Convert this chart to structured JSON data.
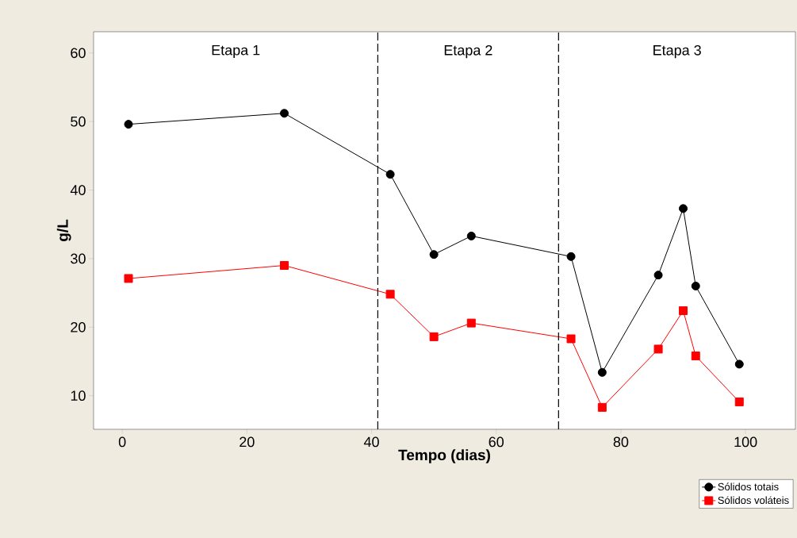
{
  "chart_data": {
    "type": "line",
    "xlabel": "Tempo (dias)",
    "ylabel": "g/L",
    "xlim": [
      -4.6,
      108
    ],
    "ylim": [
      5.1,
      63.1
    ],
    "xticks": [
      0,
      20,
      40,
      60,
      80,
      100
    ],
    "yticks": [
      10,
      20,
      30,
      40,
      50,
      60
    ],
    "grid": false,
    "legend": "bottom right",
    "line_style": "solid",
    "series": [
      {
        "name": "Sólidos totais",
        "color": "#000000",
        "marker": "circle",
        "x": [
          1,
          26,
          43,
          50,
          56,
          72,
          77,
          86,
          90,
          92,
          99
        ],
        "values": [
          49.6,
          51.2,
          42.3,
          30.6,
          33.3,
          30.3,
          13.4,
          27.6,
          37.3,
          26.0,
          14.6
        ]
      },
      {
        "name": "Sólidos voláteis",
        "color": "#ff0000",
        "marker": "square",
        "x": [
          1,
          26,
          43,
          50,
          56,
          72,
          77,
          86,
          90,
          92,
          99
        ],
        "values": [
          27.1,
          29.0,
          24.8,
          18.6,
          20.6,
          18.3,
          8.3,
          16.8,
          22.4,
          15.8,
          9.1
        ]
      }
    ],
    "ref_lines": [
      {
        "axis": "x",
        "value": 41,
        "color": "#000000",
        "line_style": "dashed"
      },
      {
        "axis": "x",
        "value": 70,
        "color": "#000000",
        "line_style": "dashed"
      }
    ],
    "annotations": [
      "Etapa 1",
      "Etapa 2",
      "Etapa 3"
    ]
  }
}
